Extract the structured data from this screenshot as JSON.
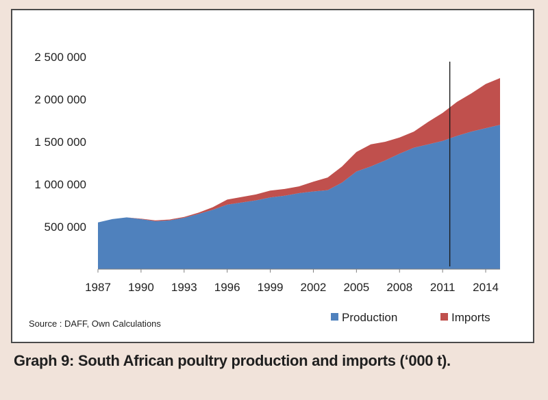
{
  "chart_data": {
    "type": "area",
    "stacked": true,
    "x": [
      1987,
      1988,
      1989,
      1990,
      1991,
      1992,
      1993,
      1994,
      1995,
      1996,
      1997,
      1998,
      1999,
      2000,
      2001,
      2002,
      2003,
      2004,
      2005,
      2006,
      2007,
      2008,
      2009,
      2010,
      2011,
      2012,
      2013,
      2014,
      2015
    ],
    "x_ticks": [
      "1987",
      "1990",
      "1993",
      "1996",
      "1999",
      "2002",
      "2005",
      "2008",
      "2011",
      "2014"
    ],
    "y_ticks": [
      "500 000",
      "1 000 000",
      "1 500 000",
      "2 000 000",
      "2 500 000"
    ],
    "ylim": [
      0,
      2500000
    ],
    "series": [
      {
        "name": "Production",
        "color": "#4f81bd",
        "values": [
          550000,
          590000,
          610000,
          590000,
          565000,
          575000,
          605000,
          650000,
          700000,
          760000,
          785000,
          810000,
          845000,
          865000,
          895000,
          915000,
          930000,
          1020000,
          1150000,
          1210000,
          1280000,
          1360000,
          1430000,
          1470000,
          1510000,
          1570000,
          1620000,
          1660000,
          1700000
        ]
      },
      {
        "name": "Imports",
        "color": "#c0504d",
        "values": [
          0,
          0,
          0,
          5000,
          10000,
          10000,
          10000,
          15000,
          30000,
          60000,
          65000,
          70000,
          80000,
          80000,
          80000,
          115000,
          150000,
          190000,
          230000,
          260000,
          220000,
          190000,
          190000,
          265000,
          330000,
          400000,
          450000,
          520000,
          550000
        ]
      }
    ],
    "vertical_marker_x": 2011.5,
    "legend_position": "bottom-right",
    "grid": false
  },
  "legend": {
    "production_label": "Production",
    "imports_label": "Imports"
  },
  "source_note": "Source : DAFF, Own Calculations",
  "caption": "Graph 9: South African poultry production and imports (‘000 t)."
}
